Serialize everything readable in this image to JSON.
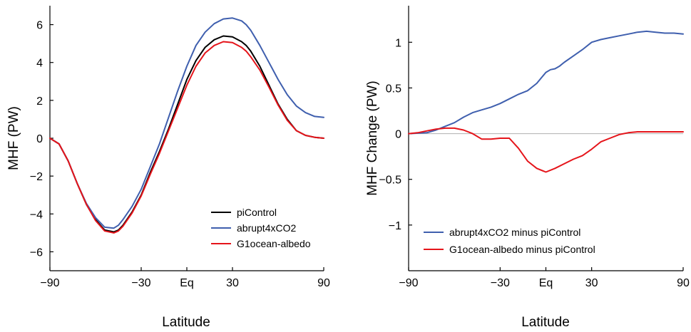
{
  "figure": {
    "left_xlabel": "Latitude",
    "right_xlabel": "Latitude"
  },
  "chart_data": [
    {
      "type": "line",
      "title": "",
      "ylabel": "MHF (PW)",
      "xlabel": "Latitude",
      "xlim": [
        -90,
        90
      ],
      "ylim": [
        -7,
        7
      ],
      "xticks": [
        -90,
        -30,
        0,
        30,
        90
      ],
      "xtick_labels": [
        "−90",
        "−30",
        "Eq",
        "30",
        "90"
      ],
      "yticks": [
        -6,
        -4,
        -2,
        0,
        2,
        4,
        6
      ],
      "ytick_labels": [
        "−6",
        "−4",
        "−2",
        "0",
        "2",
        "4",
        "6"
      ],
      "grid": false,
      "legend_position": "bottom-right",
      "series": [
        {
          "name": "piControl",
          "color": "#000000",
          "x": [
            -90,
            -84,
            -78,
            -72,
            -66,
            -60,
            -54,
            -48,
            -45,
            -42,
            -36,
            -30,
            -24,
            -18,
            -12,
            -6,
            0,
            6,
            12,
            18,
            24,
            30,
            36,
            39,
            42,
            48,
            54,
            60,
            66,
            72,
            78,
            84,
            90
          ],
          "y": [
            0,
            -0.3,
            -1.2,
            -2.4,
            -3.5,
            -4.3,
            -4.85,
            -4.95,
            -4.85,
            -4.6,
            -3.9,
            -3.0,
            -1.8,
            -0.7,
            0.5,
            1.8,
            3.1,
            4.1,
            4.8,
            5.2,
            5.4,
            5.35,
            5.1,
            4.9,
            4.6,
            3.8,
            2.8,
            1.8,
            1.0,
            0.4,
            0.15,
            0.05,
            0
          ]
        },
        {
          "name": "abrupt4xCO2",
          "color": "#3f5fae",
          "x": [
            -90,
            -84,
            -78,
            -72,
            -66,
            -60,
            -54,
            -48,
            -45,
            -42,
            -36,
            -30,
            -24,
            -18,
            -12,
            -6,
            0,
            6,
            12,
            18,
            24,
            30,
            36,
            39,
            42,
            48,
            54,
            60,
            66,
            72,
            78,
            84,
            90
          ],
          "y": [
            0,
            -0.3,
            -1.2,
            -2.4,
            -3.45,
            -4.2,
            -4.7,
            -4.75,
            -4.6,
            -4.3,
            -3.6,
            -2.7,
            -1.5,
            -0.3,
            1.1,
            2.5,
            3.8,
            4.9,
            5.6,
            6.05,
            6.3,
            6.35,
            6.2,
            6.0,
            5.7,
            4.9,
            4.0,
            3.1,
            2.3,
            1.7,
            1.35,
            1.15,
            1.1
          ]
        },
        {
          "name": "G1ocean-albedo",
          "color": "#e5141a",
          "x": [
            -90,
            -84,
            -78,
            -72,
            -66,
            -60,
            -54,
            -48,
            -45,
            -42,
            -36,
            -30,
            -24,
            -18,
            -12,
            -6,
            0,
            6,
            12,
            18,
            24,
            30,
            36,
            39,
            42,
            48,
            54,
            60,
            66,
            72,
            78,
            84,
            90
          ],
          "y": [
            0,
            -0.3,
            -1.2,
            -2.4,
            -3.5,
            -4.35,
            -4.9,
            -5.0,
            -4.9,
            -4.65,
            -3.95,
            -3.05,
            -1.9,
            -0.8,
            0.4,
            1.6,
            2.8,
            3.8,
            4.5,
            4.9,
            5.1,
            5.05,
            4.8,
            4.6,
            4.3,
            3.6,
            2.7,
            1.75,
            0.95,
            0.4,
            0.15,
            0.05,
            0
          ]
        }
      ]
    },
    {
      "type": "line",
      "title": "",
      "ylabel": "MHF Change (PW)",
      "xlabel": "Latitude",
      "xlim": [
        -90,
        90
      ],
      "ylim": [
        -1.5,
        1.4
      ],
      "xticks": [
        -90,
        -30,
        0,
        30,
        90
      ],
      "xtick_labels": [
        "−90",
        "−30",
        "Eq",
        "30",
        "90"
      ],
      "yticks": [
        -1,
        -0.5,
        0,
        0.5,
        1
      ],
      "ytick_labels": [
        "−1",
        "−0.5",
        "0",
        "0.5",
        "1"
      ],
      "grid": false,
      "zero_line": true,
      "legend_position": "bottom-left",
      "series": [
        {
          "name": "abrupt4xCO2 minus piControl",
          "color": "#3f5fae",
          "x": [
            -90,
            -84,
            -78,
            -72,
            -66,
            -60,
            -54,
            -48,
            -42,
            -36,
            -30,
            -24,
            -18,
            -12,
            -6,
            0,
            3,
            6,
            9,
            12,
            18,
            24,
            30,
            36,
            42,
            48,
            54,
            60,
            66,
            72,
            78,
            84,
            90
          ],
          "y": [
            0,
            0.005,
            0.01,
            0.04,
            0.08,
            0.12,
            0.18,
            0.23,
            0.26,
            0.29,
            0.33,
            0.38,
            0.43,
            0.47,
            0.55,
            0.67,
            0.7,
            0.71,
            0.74,
            0.78,
            0.85,
            0.92,
            1.0,
            1.03,
            1.05,
            1.07,
            1.09,
            1.11,
            1.12,
            1.11,
            1.1,
            1.1,
            1.09
          ]
        },
        {
          "name": "G1ocean-albedo minus piControl",
          "color": "#e5141a",
          "x": [
            -90,
            -84,
            -78,
            -72,
            -66,
            -60,
            -54,
            -48,
            -42,
            -36,
            -30,
            -24,
            -18,
            -12,
            -6,
            0,
            6,
            12,
            18,
            24,
            30,
            36,
            42,
            48,
            54,
            60,
            66,
            72,
            78,
            84,
            90
          ],
          "y": [
            0,
            0.01,
            0.03,
            0.05,
            0.06,
            0.06,
            0.04,
            0.0,
            -0.06,
            -0.06,
            -0.05,
            -0.05,
            -0.16,
            -0.3,
            -0.38,
            -0.42,
            -0.38,
            -0.33,
            -0.28,
            -0.24,
            -0.17,
            -0.09,
            -0.05,
            -0.01,
            0.01,
            0.02,
            0.02,
            0.02,
            0.02,
            0.02,
            0.02
          ]
        }
      ]
    }
  ]
}
